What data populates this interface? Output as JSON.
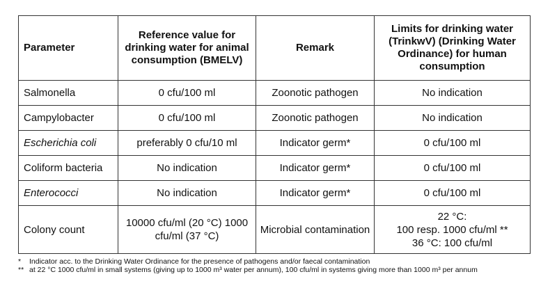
{
  "headers": {
    "parameter": "Parameter",
    "reference": "Reference value for drinking water for animal consumption (BMELV)",
    "remark": "Remark",
    "limits": "Limits for drinking water (TrinkwV) (Drinking Water Ordinance) for human consumption"
  },
  "rows": [
    {
      "parameter": "Salmonella",
      "reference": "0 cfu/100 ml",
      "remark": "Zoonotic pathogen",
      "limits": "No indication"
    },
    {
      "parameter": "Campylobacter",
      "reference": "0 cfu/100 ml",
      "remark": "Zoonotic pathogen",
      "limits": "No indication"
    },
    {
      "parameter": "Escherichia coli",
      "reference": "preferably 0 cfu/10 ml",
      "remark": "Indicator germ*",
      "limits": "0 cfu/100 ml"
    },
    {
      "parameter": "Coliform bacteria",
      "reference": "No indication",
      "remark": "Indicator germ*",
      "limits": "0 cfu/100 ml"
    },
    {
      "parameter": "Enterococci",
      "reference": "No indication",
      "remark": "Indicator germ*",
      "limits": "0 cfu/100 ml"
    },
    {
      "parameter": "Colony count",
      "reference": "10000 cfu/ml (20 °C) 1000 cfu/ml (37 °C)",
      "remark": "Microbial contamination",
      "limits_lines": [
        "22 °C:",
        "100 resp. 1000 cfu/ml **",
        "36 °C: 100 cfu/ml"
      ]
    }
  ],
  "footnotes": [
    {
      "mark": "*",
      "text": "Indicator acc. to the Drinking Water Ordinance for the presence of pathogens and/or faecal contamination"
    },
    {
      "mark": "**",
      "text": "at 22 °C 1000 cfu/ml in small systems (giving up to 1000 m³ water per annum), 100 cfu/ml in systems giving more than 1000 m³ per annum"
    }
  ]
}
